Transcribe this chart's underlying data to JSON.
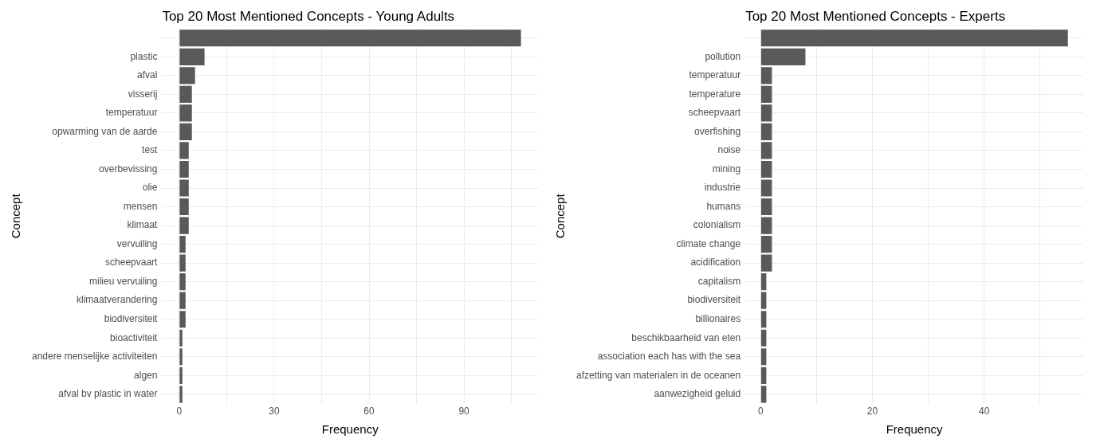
{
  "chart_data": [
    {
      "type": "bar",
      "orientation": "horizontal",
      "title": "Top 20 Most Mentioned Concepts - Young Adults",
      "xlabel": "Frequency",
      "ylabel": "Concept",
      "categories": [
        null,
        "plastic",
        "afval",
        "visserij",
        "temperatuur",
        "opwarming van de aarde",
        "test",
        "overbevissing",
        "olie",
        "mensen",
        "klimaat",
        "vervuiling",
        "scheepvaart",
        "milieu vervuiling",
        "klimaatverandering",
        "biodiversiteit",
        "bioactiviteit",
        "andere menselijke activiteiten",
        "algen",
        "afval bv plastic in water"
      ],
      "values": [
        108,
        8,
        5,
        4,
        4,
        4,
        3,
        3,
        3,
        3,
        3,
        2,
        2,
        2,
        2,
        2,
        1,
        1,
        1,
        1
      ],
      "color": "#595959",
      "xlim": [
        -5.4,
        113.4
      ],
      "xticks": [
        0,
        {
          "value": 15,
          "label": null
        },
        30,
        {
          "value": 45,
          "label": null
        },
        60,
        {
          "value": 75,
          "label": null
        },
        90,
        {
          "value": 105,
          "label": null
        }
      ],
      "grid": true
    },
    {
      "type": "bar",
      "orientation": "horizontal",
      "title": "Top 20 Most Mentioned Concepts - Experts",
      "xlabel": "Frequency",
      "ylabel": "Concept",
      "categories": [
        null,
        "pollution",
        "temperatuur",
        "temperature",
        "scheepvaart",
        "overfishing",
        "noise",
        "mining",
        "industrie",
        "humans",
        "colonialism",
        "climate change",
        "acidification",
        "capitalism",
        "biodiversiteit",
        "billionaires",
        "beschikbaarheid van eten",
        "association each has with the sea",
        "afzetting van materialen in de oceanen",
        "aanwezigheid geluid"
      ],
      "values": [
        55,
        8,
        2,
        2,
        2,
        2,
        2,
        2,
        2,
        2,
        2,
        2,
        2,
        1,
        1,
        1,
        1,
        1,
        1,
        1
      ],
      "color": "#595959",
      "xlim": [
        -2.75,
        57.75
      ],
      "xticks": [
        0,
        {
          "value": 10,
          "label": null
        },
        20,
        {
          "value": 30,
          "label": null
        },
        40,
        {
          "value": 50,
          "label": null
        }
      ],
      "grid": true
    }
  ]
}
